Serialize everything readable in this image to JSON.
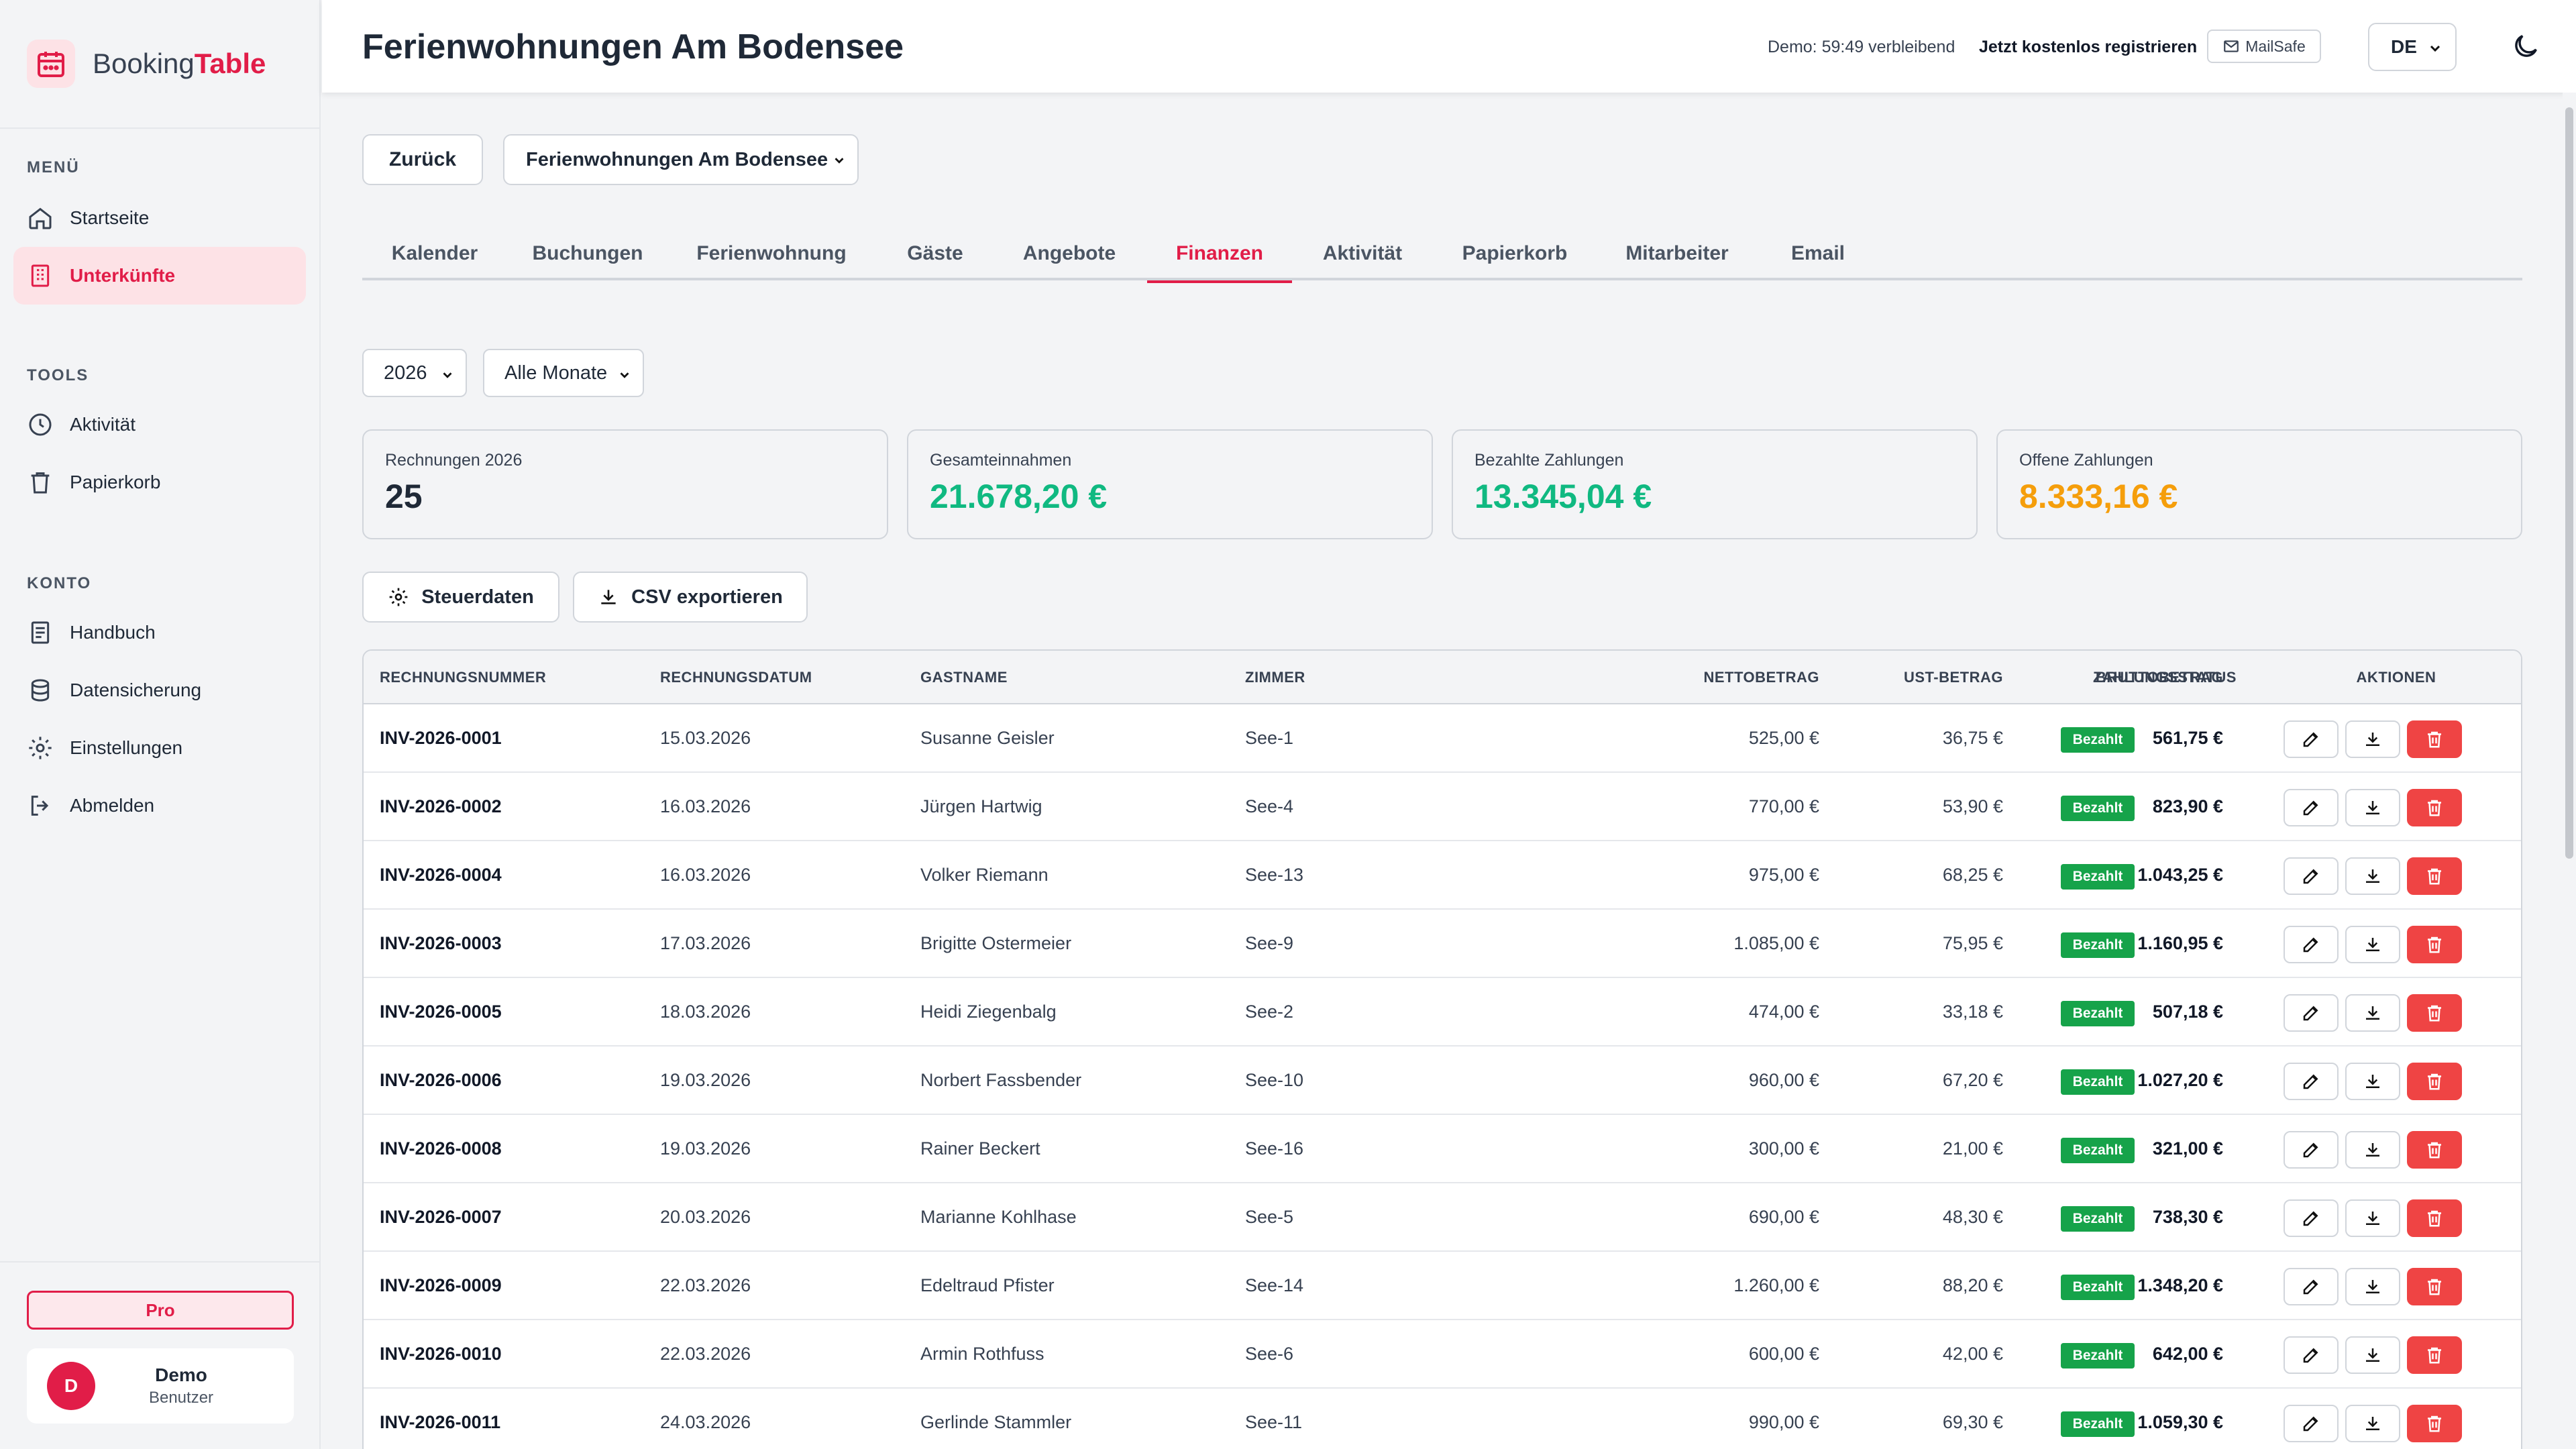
{
  "brand": {
    "name_part1": "Booking",
    "name_part2": "Table"
  },
  "sidebar": {
    "sections": [
      {
        "label": "MENÜ",
        "items": [
          {
            "label": "Startseite",
            "icon": "home-icon"
          },
          {
            "label": "Unterkünfte",
            "icon": "building-icon",
            "active": true
          }
        ]
      },
      {
        "label": "TOOLS",
        "items": [
          {
            "label": "Aktivität",
            "icon": "clock-icon"
          },
          {
            "label": "Papierkorb",
            "icon": "trash-icon"
          }
        ]
      },
      {
        "label": "KONTO",
        "items": [
          {
            "label": "Handbuch",
            "icon": "book-icon"
          },
          {
            "label": "Datensicherung",
            "icon": "database-icon"
          },
          {
            "label": "Einstellungen",
            "icon": "gear-icon"
          },
          {
            "label": "Abmelden",
            "icon": "logout-icon"
          }
        ]
      }
    ],
    "plan_badge": "Pro",
    "user": {
      "initial": "D",
      "name": "Demo",
      "role": "Benutzer"
    }
  },
  "header": {
    "title": "Ferienwohnungen Am Bodensee",
    "demo_timer": "Demo: 59:49 verbleibend",
    "register_link": "Jetzt kostenlos registrieren",
    "mailsafe_label": "MailSafe",
    "language": "DE"
  },
  "toolbar": {
    "back_label": "Zurück",
    "property_selected": "Ferienwohnungen Am Bodensee"
  },
  "tabs": [
    {
      "label": "Kalender"
    },
    {
      "label": "Buchungen"
    },
    {
      "label": "Ferienwohnung"
    },
    {
      "label": "Gäste"
    },
    {
      "label": "Angebote"
    },
    {
      "label": "Finanzen",
      "active": true
    },
    {
      "label": "Aktivität"
    },
    {
      "label": "Papierkorb"
    },
    {
      "label": "Mitarbeiter"
    },
    {
      "label": "Email"
    }
  ],
  "filters": {
    "year": "2026",
    "month": "Alle Monate"
  },
  "stats": [
    {
      "label": "Rechnungen 2026",
      "value": "25",
      "color": "#1f2937"
    },
    {
      "label": "Gesamteinnahmen",
      "value": "21.678,20 €",
      "color": "#10b981"
    },
    {
      "label": "Bezahlte Zahlungen",
      "value": "13.345,04 €",
      "color": "#10b981"
    },
    {
      "label": "Offene Zahlungen",
      "value": "8.333,16 €",
      "color": "#f59e0b"
    }
  ],
  "actions": {
    "tax_label": "Steuerdaten",
    "csv_label": "CSV exportieren"
  },
  "table": {
    "headers": [
      "RECHNUNGSNUMMER",
      "RECHNUNGSDATUM",
      "GASTNAME",
      "ZIMMER",
      "NETTOBETRAG",
      "UST-BETRAG",
      "BRUTTOBETRAG",
      "ZAHLUNGSSTATUS",
      "AKTIONEN"
    ],
    "rows": [
      {
        "inv": "INV-2026-0001",
        "date": "15.03.2026",
        "guest": "Susanne Geisler",
        "room": "See-1",
        "net": "525,00 €",
        "vat": "36,75 €",
        "gross": "561,75 €",
        "status": "Bezahlt"
      },
      {
        "inv": "INV-2026-0002",
        "date": "16.03.2026",
        "guest": "Jürgen Hartwig",
        "room": "See-4",
        "net": "770,00 €",
        "vat": "53,90 €",
        "gross": "823,90 €",
        "status": "Bezahlt"
      },
      {
        "inv": "INV-2026-0004",
        "date": "16.03.2026",
        "guest": "Volker Riemann",
        "room": "See-13",
        "net": "975,00 €",
        "vat": "68,25 €",
        "gross": "1.043,25 €",
        "status": "Bezahlt"
      },
      {
        "inv": "INV-2026-0003",
        "date": "17.03.2026",
        "guest": "Brigitte Ostermeier",
        "room": "See-9",
        "net": "1.085,00 €",
        "vat": "75,95 €",
        "gross": "1.160,95 €",
        "status": "Bezahlt"
      },
      {
        "inv": "INV-2026-0005",
        "date": "18.03.2026",
        "guest": "Heidi Ziegenbalg",
        "room": "See-2",
        "net": "474,00 €",
        "vat": "33,18 €",
        "gross": "507,18 €",
        "status": "Bezahlt"
      },
      {
        "inv": "INV-2026-0006",
        "date": "19.03.2026",
        "guest": "Norbert Fassbender",
        "room": "See-10",
        "net": "960,00 €",
        "vat": "67,20 €",
        "gross": "1.027,20 €",
        "status": "Bezahlt"
      },
      {
        "inv": "INV-2026-0008",
        "date": "19.03.2026",
        "guest": "Rainer Beckert",
        "room": "See-16",
        "net": "300,00 €",
        "vat": "21,00 €",
        "gross": "321,00 €",
        "status": "Bezahlt"
      },
      {
        "inv": "INV-2026-0007",
        "date": "20.03.2026",
        "guest": "Marianne Kohlhase",
        "room": "See-5",
        "net": "690,00 €",
        "vat": "48,30 €",
        "gross": "738,30 €",
        "status": "Bezahlt"
      },
      {
        "inv": "INV-2026-0009",
        "date": "22.03.2026",
        "guest": "Edeltraud Pfister",
        "room": "See-14",
        "net": "1.260,00 €",
        "vat": "88,20 €",
        "gross": "1.348,20 €",
        "status": "Bezahlt"
      },
      {
        "inv": "INV-2026-0010",
        "date": "22.03.2026",
        "guest": "Armin Rothfuss",
        "room": "See-6",
        "net": "600,00 €",
        "vat": "42,00 €",
        "gross": "642,00 €",
        "status": "Bezahlt"
      },
      {
        "inv": "INV-2026-0011",
        "date": "24.03.2026",
        "guest": "Gerlinde Stammler",
        "room": "See-11",
        "net": "990,00 €",
        "vat": "69,30 €",
        "gross": "1.059,30 €",
        "status": "Bezahlt"
      }
    ]
  }
}
